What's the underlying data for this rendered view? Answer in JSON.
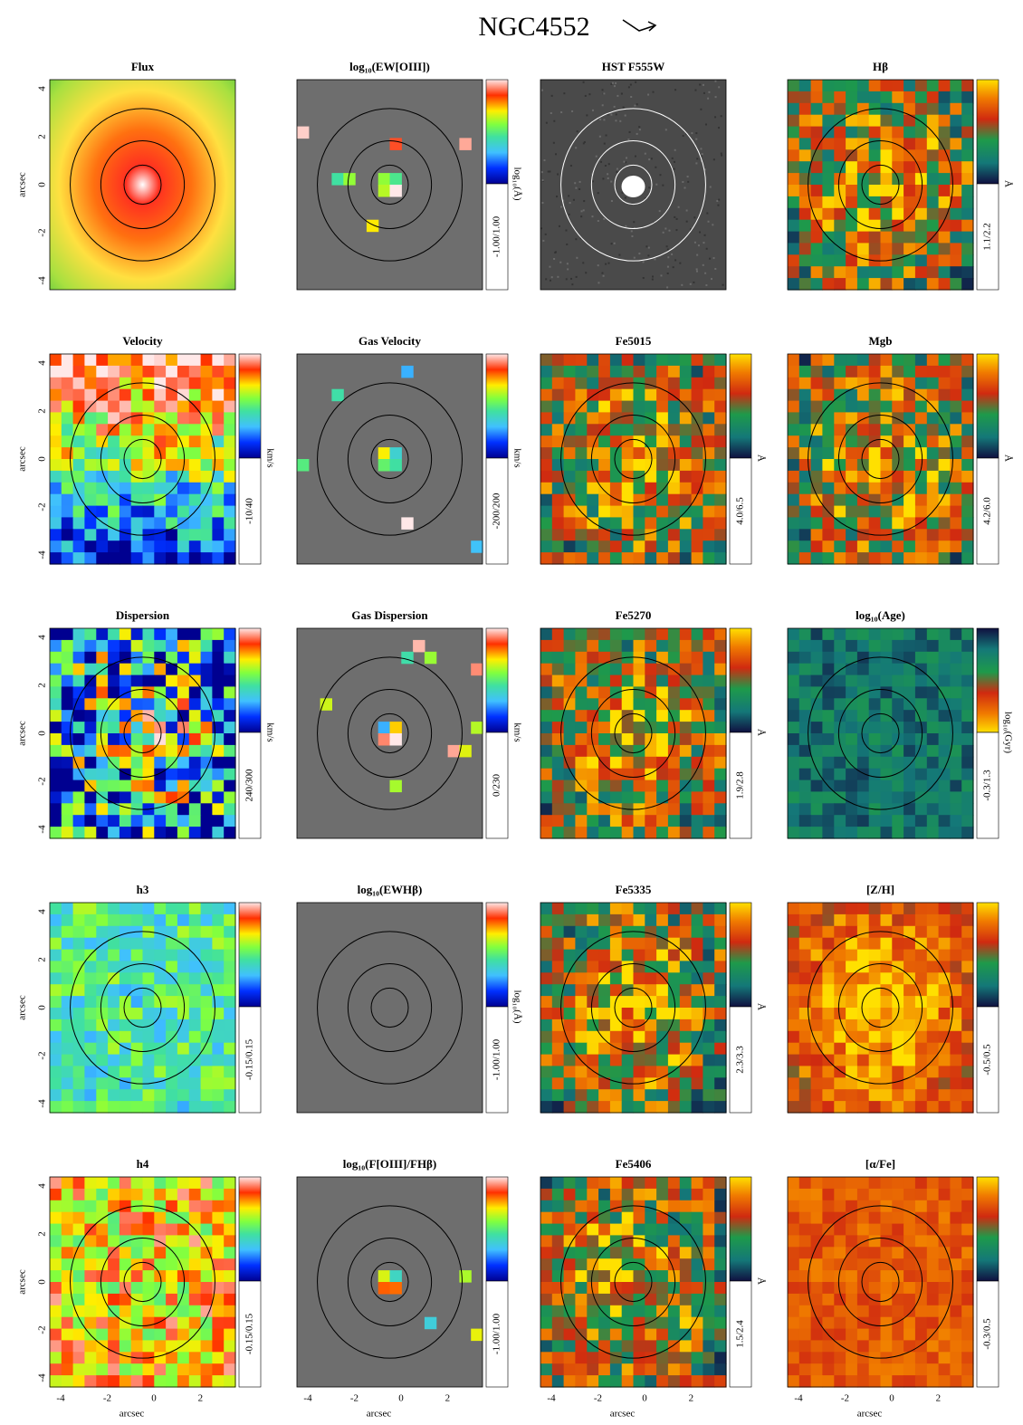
{
  "title": "NGC4552",
  "axis_label": "arcsec",
  "yticks": [
    "4",
    "2",
    "0",
    "-2",
    "-4"
  ],
  "xticks": [
    "-4",
    "-2",
    "0",
    "2"
  ],
  "panels": [
    {
      "title": "Flux"
    },
    {
      "title": "log₁₀(EW[OIII])",
      "range": "-1.00/1.00",
      "unit": "log₁₀(Å)"
    },
    {
      "title": "HST F555W"
    },
    {
      "title": "Hβ",
      "range": "1.1/2.2",
      "unit": "Å"
    },
    {
      "title": "Velocity",
      "range": "-10/40",
      "unit": "km/s"
    },
    {
      "title": "Gas Velocity",
      "range": "-200/200",
      "unit": "km/s"
    },
    {
      "title": "Fe5015",
      "range": "4.0/6.5",
      "unit": "Å"
    },
    {
      "title": "Mgb",
      "range": "4.2/6.0",
      "unit": "Å"
    },
    {
      "title": "Dispersion",
      "range": "240/300",
      "unit": "km/s"
    },
    {
      "title": "Gas Dispersion",
      "range": "0/230",
      "unit": "km/s"
    },
    {
      "title": "Fe5270",
      "range": "1.9/2.8",
      "unit": "Å"
    },
    {
      "title": "log₁₀(Age)",
      "range": "-0.3/1.3",
      "unit": "log₁₀(Gyr)"
    },
    {
      "title": "h3",
      "range": "-0.15/0.15"
    },
    {
      "title": "log₁₀(EWHβ)",
      "range": "-1.00/1.00",
      "unit": "log₁₀(Å)"
    },
    {
      "title": "Fe5335",
      "range": "2.3/3.3",
      "unit": "Å"
    },
    {
      "title": "[Z/H]",
      "range": "-0.5/0.5"
    },
    {
      "title": "h4",
      "range": "-0.15/0.15"
    },
    {
      "title": "log₁₀(F[OIII]/FHβ)",
      "range": "-1.00/1.00"
    },
    {
      "title": "Fe5406",
      "range": "1.5/2.4",
      "unit": "Å"
    },
    {
      "title": "[α/Fe]",
      "range": "-0.3/0.5"
    }
  ]
}
